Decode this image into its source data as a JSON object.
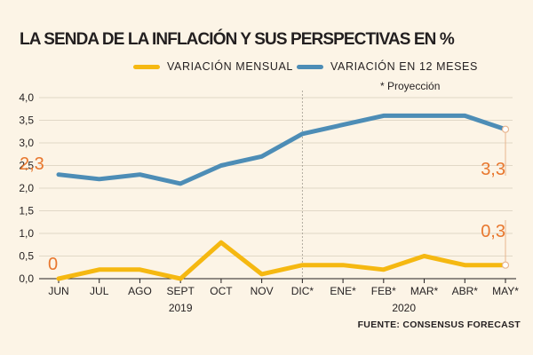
{
  "chart_data": {
    "type": "line",
    "title": "LA SENDA DE LA INFLACIÓN Y SUS PERSPECTIVAS EN %",
    "categories": [
      "JUN",
      "JUL",
      "AGO",
      "SEPT",
      "OCT",
      "NOV",
      "DIC*",
      "ENE*",
      "FEB*",
      "MAR*",
      "ABR*",
      "MAY*"
    ],
    "year_labels": [
      "2019",
      "2020"
    ],
    "series": [
      {
        "name": "VARIACIÓN MENSUAL",
        "color": "#f5b811",
        "values": [
          0.0,
          0.2,
          0.2,
          0.0,
          0.8,
          0.1,
          0.3,
          0.3,
          0.2,
          0.5,
          0.3,
          0.3
        ]
      },
      {
        "name": "VARIACIÓN EN 12 MESES",
        "color": "#4d8db6",
        "values": [
          2.3,
          2.2,
          2.3,
          2.1,
          2.5,
          2.7,
          3.2,
          3.4,
          3.6,
          3.6,
          3.6,
          3.3
        ]
      }
    ],
    "ylim": [
      0,
      4
    ],
    "yticks": [
      "0,0",
      "0,5",
      "1,0",
      "1,5",
      "2,0",
      "2,5",
      "3,0",
      "3,5",
      "4,0"
    ],
    "annotations": {
      "start_12m": "2,3",
      "start_monthly": "0",
      "end_12m": "3,3",
      "end_monthly": "0,3"
    },
    "projection_note": "* Proyección",
    "source": "FUENTE: CONSENSUS FORECAST",
    "colors": {
      "accent": "#e8772e",
      "axis": "#231f20",
      "background": "#fcf4e6"
    }
  }
}
